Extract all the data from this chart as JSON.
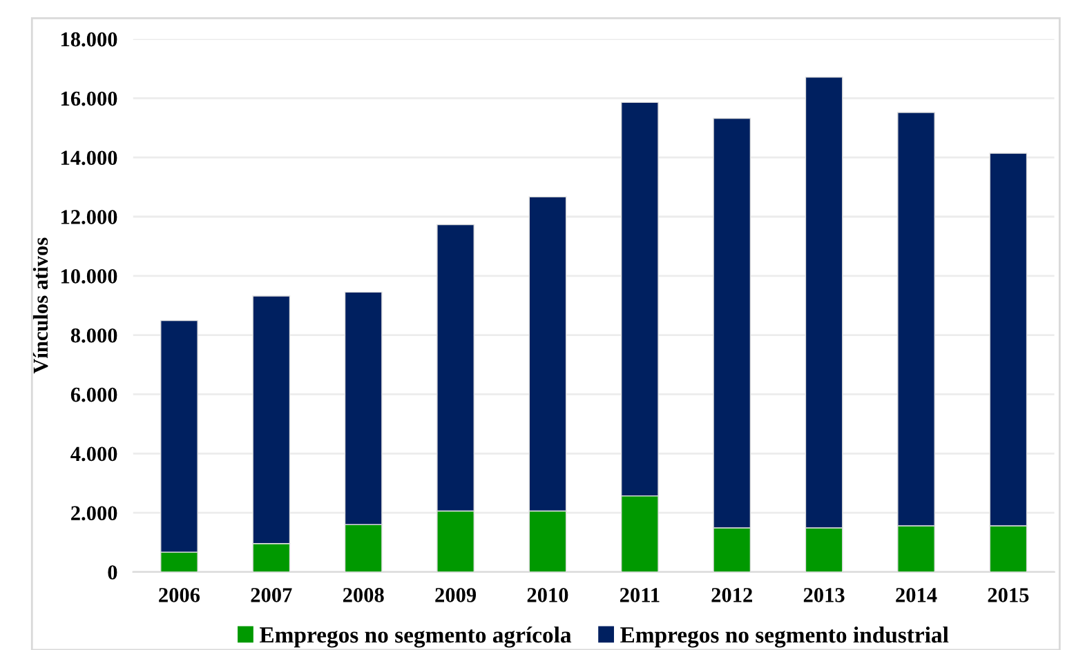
{
  "chart_data": {
    "type": "bar",
    "stacked": true,
    "ylabel": "Vínculos ativos",
    "categories": [
      "2006",
      "2007",
      "2008",
      "2009",
      "2010",
      "2011",
      "2012",
      "2013",
      "2014",
      "2015"
    ],
    "series": [
      {
        "name": "Empregos no segmento agrícola",
        "color": "#009900",
        "values": [
          670,
          960,
          1600,
          2060,
          2060,
          2570,
          1490,
          1490,
          1560,
          1560
        ]
      },
      {
        "name": "Empregos no segmento industrial",
        "color": "#002060",
        "values": [
          7820,
          8360,
          7850,
          9670,
          10610,
          13290,
          13830,
          15220,
          13960,
          12580
        ]
      }
    ],
    "ylim": [
      0,
      18000
    ],
    "yticks": [
      {
        "value": 0,
        "label": "0"
      },
      {
        "value": 2000,
        "label": "2.000"
      },
      {
        "value": 4000,
        "label": "4.000"
      },
      {
        "value": 6000,
        "label": "6.000"
      },
      {
        "value": 8000,
        "label": "8.000"
      },
      {
        "value": 10000,
        "label": "10.000"
      },
      {
        "value": 12000,
        "label": "12.000"
      },
      {
        "value": 14000,
        "label": "14.000"
      },
      {
        "value": 16000,
        "label": "16.000"
      },
      {
        "value": 18000,
        "label": "18.000"
      }
    ],
    "grid": "y",
    "legend": "bottom"
  }
}
